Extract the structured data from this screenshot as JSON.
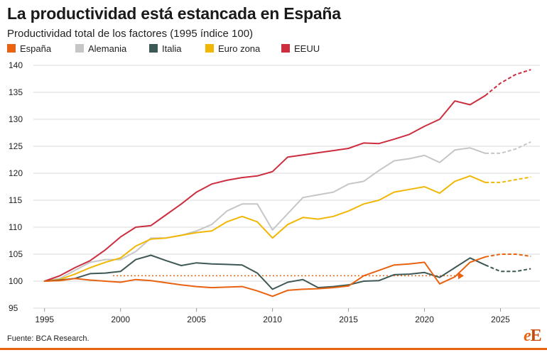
{
  "title": "La productividad está estancada en España",
  "subtitle": "Productividad total de los factores (1995 índice 100)",
  "source": "Fuente: BCA Research.",
  "logo": {
    "text": "eE",
    "part1": "e",
    "part2": "E"
  },
  "legend": [
    {
      "label": "España",
      "color": "#e8620f"
    },
    {
      "label": "Alemania",
      "color": "#c6c6c8"
    },
    {
      "label": "Italia",
      "color": "#3e5855"
    },
    {
      "label": "Euro zona",
      "color": "#f2b705"
    },
    {
      "label": "EEUU",
      "color": "#cc2e3f"
    }
  ],
  "chart_data": {
    "type": "line",
    "x_label": "",
    "y_label": "",
    "xlim": [
      1994.5,
      2027.5
    ],
    "ylim": [
      95,
      140
    ],
    "x_ticks": [
      1995,
      2000,
      2005,
      2010,
      2015,
      2020,
      2025
    ],
    "y_ticks": [
      95,
      100,
      105,
      110,
      115,
      120,
      125,
      130,
      135,
      140
    ],
    "grid": "horizontal",
    "series": [
      {
        "name": "Alemania",
        "color": "#c6c6c8",
        "solid": [
          [
            1995,
            100
          ],
          [
            1996,
            100.5
          ],
          [
            1997,
            102
          ],
          [
            1998,
            103.5
          ],
          [
            1999,
            104
          ],
          [
            2000,
            104
          ],
          [
            2001,
            105.5
          ],
          [
            2002,
            108
          ],
          [
            2003,
            108
          ],
          [
            2004,
            108.5
          ],
          [
            2005,
            109.3
          ],
          [
            2006,
            110.5
          ],
          [
            2007,
            113
          ],
          [
            2008,
            114.3
          ],
          [
            2009,
            114.3
          ],
          [
            2010,
            109.5
          ],
          [
            2011,
            112.5
          ],
          [
            2012,
            115.5
          ],
          [
            2013,
            116
          ],
          [
            2014,
            116.5
          ],
          [
            2015,
            118
          ],
          [
            2016,
            118.5
          ],
          [
            2017,
            120.5
          ],
          [
            2018,
            122.3
          ],
          [
            2019,
            122.7
          ],
          [
            2020,
            123.3
          ],
          [
            2021,
            122
          ],
          [
            2022,
            124.3
          ],
          [
            2023,
            124.7
          ],
          [
            2024,
            123.7
          ]
        ],
        "projected": [
          [
            2024,
            123.7
          ],
          [
            2025,
            123.7
          ],
          [
            2026,
            124.5
          ],
          [
            2027,
            125.8
          ]
        ]
      },
      {
        "name": "Euro zona",
        "color": "#f2b705",
        "solid": [
          [
            1995,
            100
          ],
          [
            1996,
            100.3
          ],
          [
            1997,
            101.3
          ],
          [
            1998,
            102.5
          ],
          [
            1999,
            103.5
          ],
          [
            2000,
            104.3
          ],
          [
            2001,
            106.5
          ],
          [
            2002,
            107.8
          ],
          [
            2003,
            108
          ],
          [
            2004,
            108.5
          ],
          [
            2005,
            109
          ],
          [
            2006,
            109.3
          ],
          [
            2007,
            111
          ],
          [
            2008,
            112
          ],
          [
            2009,
            111
          ],
          [
            2010,
            108
          ],
          [
            2011,
            110.5
          ],
          [
            2012,
            111.8
          ],
          [
            2013,
            111.5
          ],
          [
            2014,
            112
          ],
          [
            2015,
            113
          ],
          [
            2016,
            114.3
          ],
          [
            2017,
            115
          ],
          [
            2018,
            116.5
          ],
          [
            2019,
            117
          ],
          [
            2020,
            117.5
          ],
          [
            2021,
            116.3
          ],
          [
            2022,
            118.5
          ],
          [
            2023,
            119.5
          ],
          [
            2024,
            118.3
          ]
        ],
        "projected": [
          [
            2024,
            118.3
          ],
          [
            2025,
            118.3
          ],
          [
            2026,
            118.8
          ],
          [
            2027,
            119.3
          ]
        ]
      },
      {
        "name": "EEUU",
        "color": "#cc2e3f",
        "solid": [
          [
            1995,
            100
          ],
          [
            1996,
            101
          ],
          [
            1997,
            102.5
          ],
          [
            1998,
            103.8
          ],
          [
            1999,
            105.8
          ],
          [
            2000,
            108.2
          ],
          [
            2001,
            110
          ],
          [
            2002,
            110.3
          ],
          [
            2003,
            112.3
          ],
          [
            2004,
            114.3
          ],
          [
            2005,
            116.5
          ],
          [
            2006,
            118
          ],
          [
            2007,
            118.7
          ],
          [
            2008,
            119.2
          ],
          [
            2009,
            119.5
          ],
          [
            2010,
            120.3
          ],
          [
            2011,
            123
          ],
          [
            2012,
            123.4
          ],
          [
            2013,
            123.8
          ],
          [
            2014,
            124.2
          ],
          [
            2015,
            124.6
          ],
          [
            2016,
            125.6
          ],
          [
            2017,
            125.5
          ],
          [
            2018,
            126.3
          ],
          [
            2019,
            127.2
          ],
          [
            2020,
            128.7
          ],
          [
            2021,
            130
          ],
          [
            2022,
            133.4
          ],
          [
            2023,
            132.7
          ],
          [
            2024,
            134.4
          ]
        ],
        "projected": [
          [
            2024,
            134.4
          ],
          [
            2025,
            136.7
          ],
          [
            2026,
            138.3
          ],
          [
            2027,
            139.2
          ]
        ]
      },
      {
        "name": "Italia",
        "color": "#3e5855",
        "solid": [
          [
            1995,
            100
          ],
          [
            1996,
            100.2
          ],
          [
            1997,
            100.5
          ],
          [
            1998,
            101.4
          ],
          [
            1999,
            101.5
          ],
          [
            2000,
            101.8
          ],
          [
            2001,
            104
          ],
          [
            2002,
            104.8
          ],
          [
            2003,
            103.8
          ],
          [
            2004,
            102.9
          ],
          [
            2005,
            103.4
          ],
          [
            2006,
            103.2
          ],
          [
            2007,
            103.1
          ],
          [
            2008,
            103
          ],
          [
            2009,
            101.5
          ],
          [
            2010,
            98.5
          ],
          [
            2011,
            99.8
          ],
          [
            2012,
            100.3
          ],
          [
            2013,
            98.8
          ],
          [
            2014,
            99
          ],
          [
            2015,
            99.3
          ],
          [
            2016,
            100
          ],
          [
            2017,
            100.1
          ],
          [
            2018,
            101.2
          ],
          [
            2019,
            101.3
          ],
          [
            2020,
            101.6
          ],
          [
            2021,
            100.7
          ],
          [
            2022,
            102.5
          ],
          [
            2023,
            104.3
          ],
          [
            2024,
            103
          ]
        ],
        "projected": [
          [
            2024,
            103
          ],
          [
            2025,
            101.8
          ],
          [
            2026,
            101.8
          ],
          [
            2027,
            102.3
          ]
        ]
      },
      {
        "name": "España",
        "color": "#e8620f",
        "solid": [
          [
            1995,
            100
          ],
          [
            1996,
            100.1
          ],
          [
            1997,
            100.5
          ],
          [
            1998,
            100.2
          ],
          [
            1999,
            100
          ],
          [
            2000,
            99.8
          ],
          [
            2001,
            100.3
          ],
          [
            2002,
            100.1
          ],
          [
            2003,
            99.7
          ],
          [
            2004,
            99.3
          ],
          [
            2005,
            99
          ],
          [
            2006,
            98.8
          ],
          [
            2007,
            98.9
          ],
          [
            2008,
            99
          ],
          [
            2009,
            98.2
          ],
          [
            2010,
            97.2
          ],
          [
            2011,
            98.3
          ],
          [
            2012,
            98.5
          ],
          [
            2013,
            98.6
          ],
          [
            2014,
            98.8
          ],
          [
            2015,
            99.1
          ],
          [
            2016,
            101
          ],
          [
            2017,
            102
          ],
          [
            2018,
            103
          ],
          [
            2019,
            103.2
          ],
          [
            2020,
            103.5
          ],
          [
            2021,
            99.5
          ],
          [
            2022,
            100.8
          ],
          [
            2023,
            103.5
          ],
          [
            2024,
            104.5
          ]
        ],
        "projected": [
          [
            2024,
            104.5
          ],
          [
            2025,
            105
          ],
          [
            2026,
            105
          ],
          [
            2027,
            104.6
          ]
        ]
      }
    ],
    "reference_arrow": {
      "color": "#e8620f",
      "from": [
        1999.5,
        101
      ],
      "to": [
        2022.5,
        101
      ]
    }
  }
}
